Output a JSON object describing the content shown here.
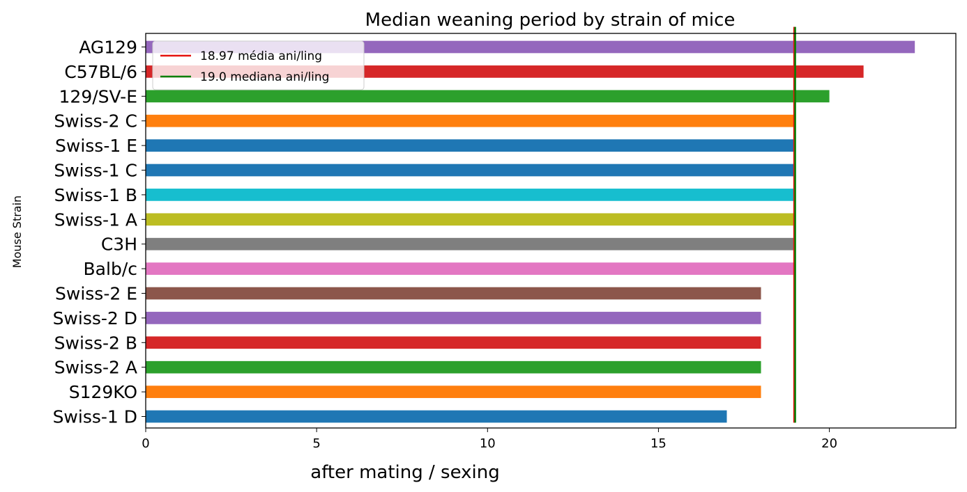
{
  "chart_data": {
    "type": "bar",
    "orientation": "horizontal",
    "title": "Median weaning period by strain of mice",
    "xlabel": "after mating / sexing",
    "ylabel": "Mouse Strain",
    "xlim": [
      0,
      23.7
    ],
    "xticks": [
      0,
      5,
      10,
      15,
      20
    ],
    "grid": false,
    "legend_position": "top-left",
    "categories": [
      "AG129",
      "C57BL/6",
      "129/SV-E",
      "Swiss-2 C",
      "Swiss-1 E",
      "Swiss-1 C",
      "Swiss-1 B",
      "Swiss-1 A",
      "C3H",
      "Balb/c",
      "Swiss-2 E",
      "Swiss-2 D",
      "Swiss-2 B",
      "Swiss-2 A",
      "S129KO",
      "Swiss-1 D"
    ],
    "values": [
      22.5,
      21,
      20,
      19,
      19,
      19,
      19,
      19,
      19,
      19,
      18,
      18,
      18,
      18,
      18,
      17
    ],
    "bar_colors": [
      "#9467bd",
      "#d62728",
      "#2ca02c",
      "#ff7f0e",
      "#1f77b4",
      "#1f77b4",
      "#17becf",
      "#bcbd22",
      "#7f7f7f",
      "#e377c2",
      "#8c564b",
      "#9467bd",
      "#d62728",
      "#2ca02c",
      "#ff7f0e",
      "#1f77b4"
    ],
    "reference_lines": [
      {
        "label": "18.97 média ani/ling",
        "value": 18.97,
        "color": "#e6120e"
      },
      {
        "label": "19.0 mediana ani/ling",
        "value": 19.0,
        "color": "#008000"
      }
    ]
  }
}
